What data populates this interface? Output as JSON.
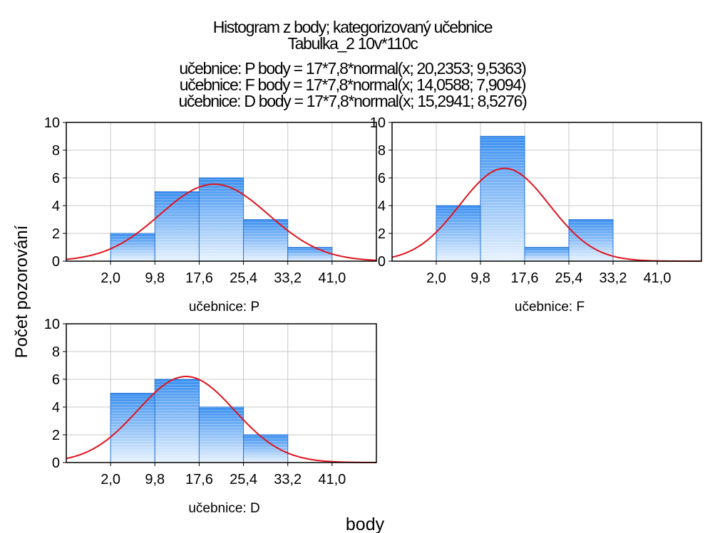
{
  "chart_data": {
    "type": "bar",
    "title": "Histogram z body; kategorizovaný učebnice",
    "subtitle": "Tabulka_2 10v*110c",
    "fit_lines": [
      "učebnice: P body = 17*7,8*normal(x; 20,2353; 9,5363)",
      "učebnice: F body = 17*7,8*normal(x; 14,0588; 7,9094)",
      "učebnice: D body = 17*7,8*normal(x; 15,2941; 8,5276)"
    ],
    "xlabel": "body",
    "ylabel": "Počet pozorování",
    "bin_edges": [
      2.0,
      9.8,
      17.6,
      25.4,
      33.2,
      41.0
    ],
    "x_tick_labels": [
      "2,0",
      "9,8",
      "17,6",
      "25,4",
      "33,2",
      "41,0"
    ],
    "y_tick_labels": [
      "0",
      "2",
      "4",
      "6",
      "8",
      "10"
    ],
    "xlim": [
      -5.8,
      48.8
    ],
    "ylim": [
      0,
      10
    ],
    "grid": true,
    "colors": {
      "bar_fill": "#4d9df0",
      "bar_edge": "#1e6fd6",
      "curve": "#e0141e",
      "grid": "#c8c8c8"
    },
    "panels": [
      {
        "label": "učebnice: P",
        "counts": [
          2,
          5,
          6,
          3,
          1
        ],
        "mean": 20.2353,
        "sd": 9.5363
      },
      {
        "label": "učebnice: F",
        "counts": [
          4,
          9,
          1,
          3,
          0
        ],
        "mean": 14.0588,
        "sd": 7.9094
      },
      {
        "label": "učebnice: D",
        "counts": [
          5,
          6,
          4,
          2,
          0
        ],
        "mean": 15.2941,
        "sd": 8.5276
      }
    ],
    "n_per_panel": 17,
    "bin_width": 7.8
  }
}
